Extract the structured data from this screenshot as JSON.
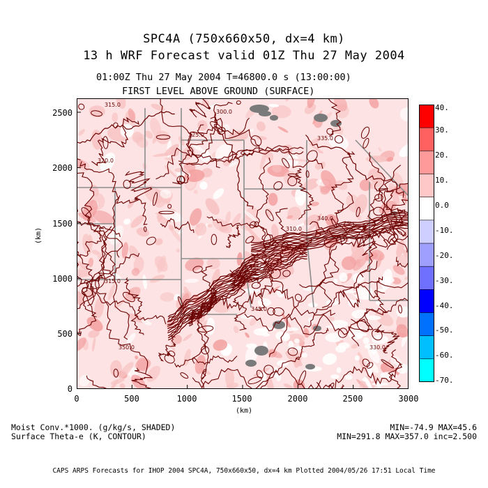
{
  "titles": {
    "line1": "SPC4A (750x660x50, dx=4 km)",
    "line2": "13 h WRF Forecast valid 01Z Thu 27 May 2004",
    "time": "01:00Z Thu 27 May 2004     T=46800.0 s (13:00:00)",
    "level": "FIRST LEVEL ABOVE GROUND (SURFACE)"
  },
  "axes": {
    "x_label": "(km)",
    "y_label": "(km)",
    "x_ticks": [
      "0",
      "500",
      "1000",
      "1500",
      "2000",
      "2500",
      "3000"
    ],
    "y_ticks": [
      "0",
      "500",
      "1000",
      "1500",
      "2000",
      "2500"
    ]
  },
  "colorbar": {
    "labels": [
      "40.",
      "30.",
      "20.",
      "10.",
      "0.0",
      "-10.",
      "-20.",
      "-30.",
      "-40.",
      "-50.",
      "-60.",
      "-70."
    ],
    "colors": [
      "#ff0000",
      "#ff6060",
      "#ff9a9a",
      "#ffc8c8",
      "#ffffff",
      "#cfcfff",
      "#9f9fff",
      "#7070ff",
      "#0000ff",
      "#0070ff",
      "#00bfff",
      "#00ffff"
    ]
  },
  "footer": {
    "shaded_var": "Moist Conv.*1000. (g/kg/s, SHADED)",
    "contour_var": "Surface Theta-e (K, CONTOUR)",
    "shaded_range": "MIN=-74.9 MAX=45.6",
    "contour_range": "MIN=291.8 MAX=357.0 inc=2.500",
    "credit": "CAPS ARPS Forecasts for IHOP 2004   SPC4A, 750x660x50, dx=4 km   Plotted 2004/05/26 17:51 Local Time"
  },
  "contour_labels": [
    "315.0",
    "300.0",
    "325.0",
    "320.0",
    "335.0",
    "310.0",
    "340.0",
    "315.0",
    "350.0",
    "330.0",
    "345.0"
  ],
  "colors": {
    "contour": "#6b0000",
    "fill_light": "#fde3e3",
    "fill_mid": "#f8c4c4",
    "fill_strong": "#f3a0a0",
    "border": "#8c8c8c",
    "terrain_gray": "#7a7a7a"
  }
}
